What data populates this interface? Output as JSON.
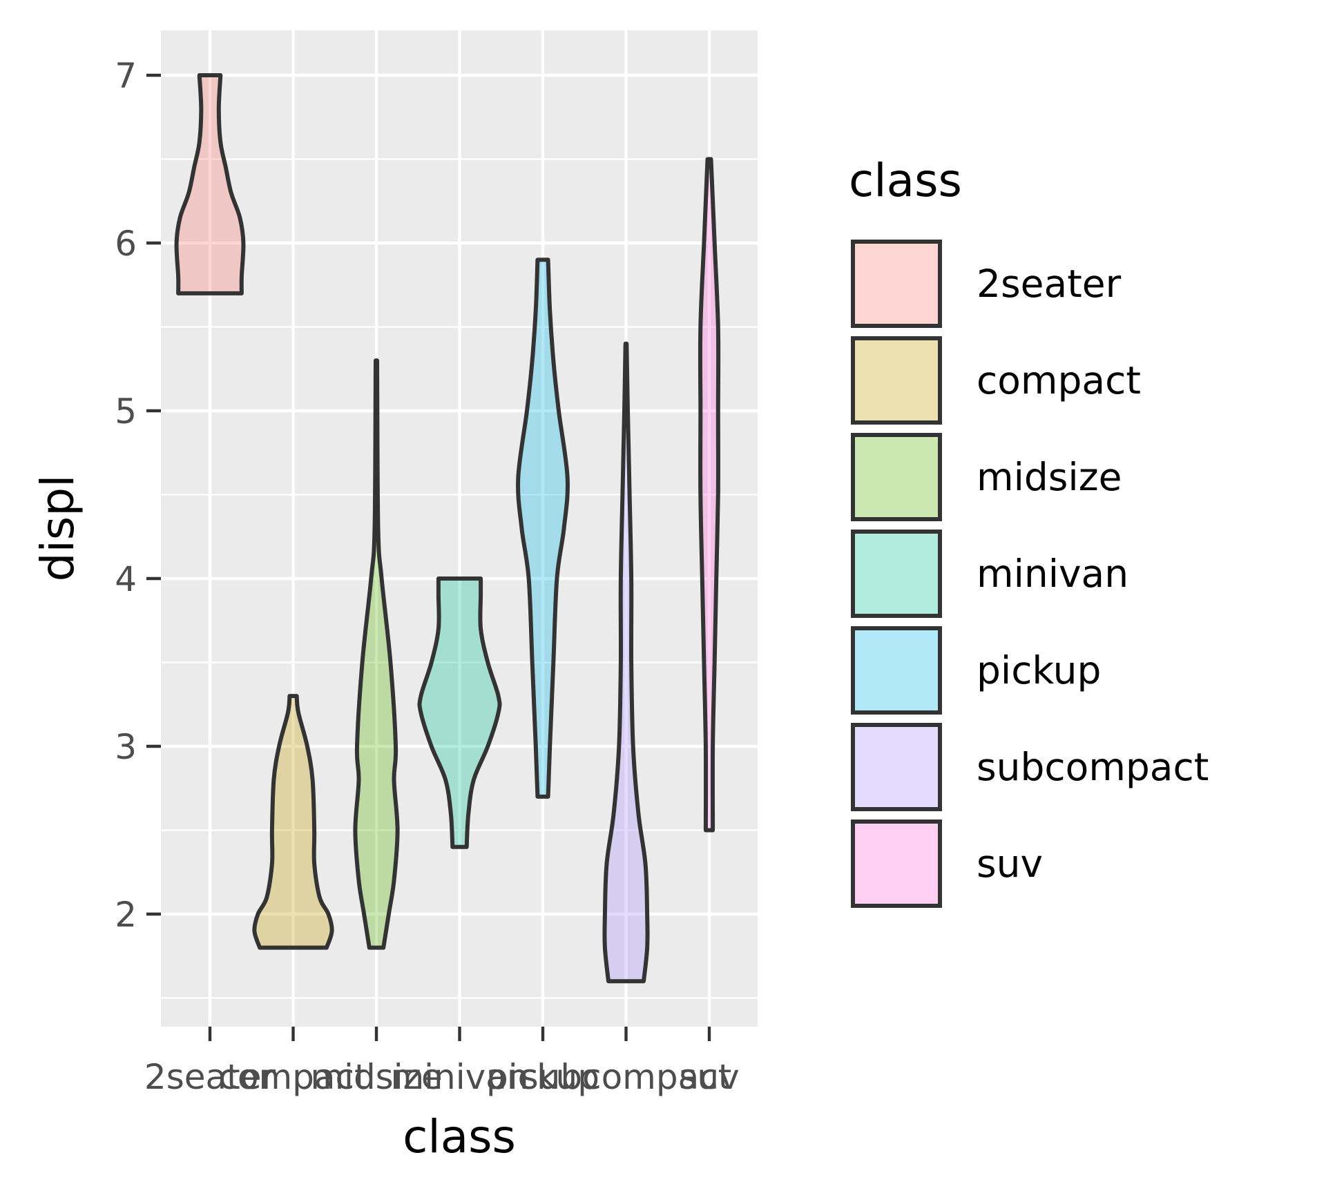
{
  "chart_data": {
    "type": "violin",
    "title": "",
    "xlabel": "class",
    "ylabel": "displ",
    "ylim": [
      1.4,
      7.25
    ],
    "yticks": [
      "2",
      "3",
      "4",
      "5",
      "6",
      "7"
    ],
    "categories": [
      "2seater",
      "compact",
      "midsize",
      "minivan",
      "pickup",
      "subcompact",
      "suv"
    ],
    "colors": [
      "#f8766d",
      "#c49a00",
      "#53b400",
      "#00c094",
      "#00b6eb",
      "#a58aff",
      "#fb61d7"
    ],
    "fill_opacity": 0.3,
    "outline_color": "#333333",
    "series": [
      {
        "name": "2seater",
        "min": 5.7,
        "max": 7.0,
        "profile": [
          [
            5.7,
            0.18
          ],
          [
            5.8,
            0.18
          ],
          [
            6.0,
            0.19
          ],
          [
            6.15,
            0.17
          ],
          [
            6.3,
            0.12
          ],
          [
            6.45,
            0.09
          ],
          [
            6.6,
            0.06
          ],
          [
            6.8,
            0.05
          ],
          [
            7.0,
            0.06
          ]
        ]
      },
      {
        "name": "compact",
        "min": 1.8,
        "max": 3.3,
        "profile": [
          [
            1.8,
            0.19
          ],
          [
            1.9,
            0.22
          ],
          [
            2.0,
            0.2
          ],
          [
            2.1,
            0.15
          ],
          [
            2.3,
            0.12
          ],
          [
            2.5,
            0.12
          ],
          [
            2.8,
            0.11
          ],
          [
            3.0,
            0.08
          ],
          [
            3.2,
            0.03
          ],
          [
            3.3,
            0.02
          ]
        ]
      },
      {
        "name": "midsize",
        "min": 1.8,
        "max": 5.3,
        "profile": [
          [
            1.8,
            0.04
          ],
          [
            2.0,
            0.07
          ],
          [
            2.2,
            0.1
          ],
          [
            2.5,
            0.12
          ],
          [
            2.8,
            0.1
          ],
          [
            3.0,
            0.11
          ],
          [
            3.5,
            0.08
          ],
          [
            4.0,
            0.03
          ],
          [
            4.3,
            0.01
          ],
          [
            5.3,
            0.004
          ]
        ]
      },
      {
        "name": "minivan",
        "min": 2.4,
        "max": 4.0,
        "profile": [
          [
            2.4,
            0.04
          ],
          [
            2.6,
            0.05
          ],
          [
            2.8,
            0.08
          ],
          [
            3.0,
            0.16
          ],
          [
            3.2,
            0.22
          ],
          [
            3.3,
            0.22
          ],
          [
            3.5,
            0.16
          ],
          [
            3.7,
            0.12
          ],
          [
            3.9,
            0.12
          ],
          [
            4.0,
            0.12
          ]
        ]
      },
      {
        "name": "pickup",
        "min": 2.7,
        "max": 5.9,
        "profile": [
          [
            2.7,
            0.03
          ],
          [
            3.0,
            0.04
          ],
          [
            3.5,
            0.06
          ],
          [
            4.0,
            0.08
          ],
          [
            4.3,
            0.12
          ],
          [
            4.6,
            0.14
          ],
          [
            5.0,
            0.09
          ],
          [
            5.3,
            0.06
          ],
          [
            5.6,
            0.04
          ],
          [
            5.9,
            0.03
          ]
        ]
      },
      {
        "name": "subcompact",
        "min": 1.6,
        "max": 5.4,
        "profile": [
          [
            1.6,
            0.1
          ],
          [
            1.8,
            0.12
          ],
          [
            2.0,
            0.12
          ],
          [
            2.3,
            0.11
          ],
          [
            2.6,
            0.07
          ],
          [
            3.0,
            0.04
          ],
          [
            3.5,
            0.03
          ],
          [
            4.0,
            0.03
          ],
          [
            4.5,
            0.02
          ],
          [
            5.0,
            0.01
          ],
          [
            5.4,
            0.003
          ]
        ]
      },
      {
        "name": "suv",
        "min": 2.5,
        "max": 6.5,
        "profile": [
          [
            2.5,
            0.02
          ],
          [
            3.0,
            0.02
          ],
          [
            3.5,
            0.03
          ],
          [
            4.0,
            0.04
          ],
          [
            4.5,
            0.05
          ],
          [
            5.0,
            0.05
          ],
          [
            5.5,
            0.05
          ],
          [
            6.0,
            0.03
          ],
          [
            6.5,
            0.01
          ]
        ]
      }
    ],
    "legend": {
      "title": "class",
      "placement": "right",
      "entries": [
        "2seater",
        "compact",
        "midsize",
        "minivan",
        "pickup",
        "subcompact",
        "suv"
      ]
    },
    "grid": true
  }
}
